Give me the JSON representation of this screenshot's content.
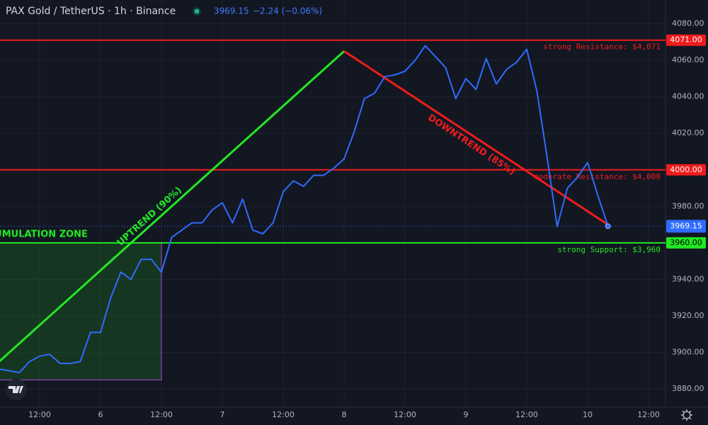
{
  "header": {
    "symbol": "PAX Gold / TetherUS · 1h · Binance",
    "change": "−2.24 (−0.06%)"
  },
  "chart_data": {
    "type": "line",
    "categories": [
      null,
      null,
      null,
      null,
      "12:00",
      null,
      null,
      null,
      null,
      null,
      "6",
      null,
      null,
      null,
      null,
      null,
      "12:00",
      null,
      null,
      null,
      null,
      null,
      "7",
      null,
      null,
      null,
      null,
      null,
      "12:00",
      null,
      null,
      null,
      null,
      null,
      "8",
      null,
      null,
      null,
      null,
      null,
      "12:00",
      null,
      null,
      null,
      null,
      null,
      "9",
      null,
      null,
      null,
      null,
      null,
      "12:00",
      null,
      null,
      null,
      null,
      null,
      "10",
      null,
      null,
      null,
      null,
      null,
      "12:00",
      null
    ],
    "values": [
      3891,
      3890,
      3889,
      3895,
      3898,
      3899,
      3894,
      3894,
      3895,
      3911,
      3911,
      3930,
      3944,
      3940,
      3951,
      3951,
      3944,
      3963,
      3967,
      3971,
      3971,
      3978,
      3982,
      3971,
      3984,
      3967,
      3965,
      3971,
      3988,
      3994,
      3991,
      3997,
      3997,
      4001,
      4006,
      4021,
      4039,
      4042,
      4051,
      4052,
      4054,
      4060,
      4068,
      4062,
      4056,
      4039,
      4050,
      4044,
      4061,
      4047,
      4055,
      4059,
      4066,
      4043,
      4007,
      3969,
      3990,
      3996,
      4004,
      3986,
      3969.15,
      null,
      null,
      null,
      null,
      null
    ],
    "color": "#2f6bff",
    "ylim": [
      3870,
      4093
    ],
    "yticks": [
      {
        "value": 4080,
        "label": "4080.00"
      },
      {
        "value": 4060,
        "label": "4060.00"
      },
      {
        "value": 4040,
        "label": "4040.00"
      },
      {
        "value": 4020,
        "label": "4020.00"
      },
      {
        "value": 3980,
        "label": "3980.00"
      },
      {
        "value": 3940,
        "label": "3940.00"
      },
      {
        "value": 3920,
        "label": "3920.00"
      },
      {
        "value": 3900,
        "label": "3900.00"
      },
      {
        "value": 3880,
        "label": "3880.00"
      }
    ],
    "grid": true,
    "last_price": {
      "value": 3969.15,
      "label": "3969.15"
    },
    "levels": [
      {
        "value": 4071,
        "label": "4071.00",
        "text": "strong Resistance: $4,071",
        "color": "#f01c1c"
      },
      {
        "value": 4000,
        "label": "4000.00",
        "text": "moderate Resistance: $4,000",
        "color": "#f01c1c"
      },
      {
        "value": 3960,
        "label": "3960.00",
        "text": "strong Support: $3,960",
        "color": "#22e822"
      }
    ],
    "trendlines": [
      {
        "text": "UPTREND (90%)",
        "color": "#22e822",
        "x": [
          0,
          34
        ],
        "values": [
          3895,
          4065
        ]
      },
      {
        "text": "DOWNTREND (85%)",
        "color": "#f01c1c",
        "x": [
          34,
          60
        ],
        "values": [
          4065,
          3970
        ]
      }
    ],
    "zone": {
      "text": "ACCUMULATION ZONE",
      "end": 16,
      "ylim": [
        3885,
        3960
      ],
      "color": "#22e822"
    }
  }
}
